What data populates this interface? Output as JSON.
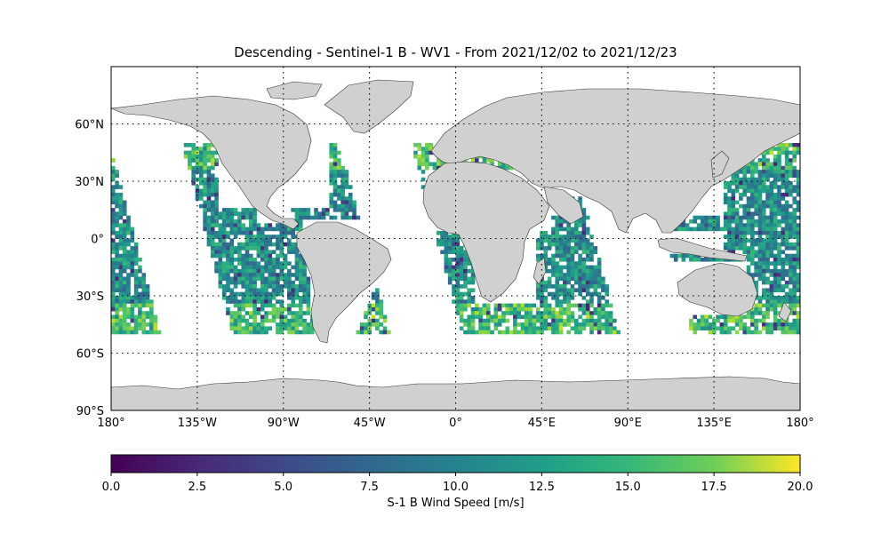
{
  "title": "Descending - Sentinel-1 B - WV1 - From 2021/12/02 to 2021/12/23",
  "lon_ticks": [
    "180°",
    "135°W",
    "90°W",
    "45°W",
    "0°",
    "45°E",
    "90°E",
    "135°E",
    "180°"
  ],
  "lat_ticks": [
    "60°N",
    "30°N",
    "0°",
    "30°S",
    "60°S",
    "90°S"
  ],
  "colorbar": {
    "label": "S-1 B Wind Speed [m/s]",
    "ticks": [
      "0.0",
      "2.5",
      "5.0",
      "7.5",
      "10.0",
      "12.5",
      "15.0",
      "17.5",
      "20.0"
    ],
    "range": [
      0,
      20
    ],
    "colormap": "viridis"
  },
  "colors": {
    "land": "#d0d0d0",
    "coast": "#333333",
    "grid": "#000000"
  },
  "chart_data": {
    "type": "heatmap",
    "title": "Descending - Sentinel-1 B - WV1 - From 2021/12/02 to 2021/12/23",
    "projection": "plate-carree",
    "xlim": [
      -180,
      180
    ],
    "ylim": [
      -90,
      90
    ],
    "data_lat_range": [
      -50,
      50
    ],
    "grid": true,
    "colorbar_label": "S-1 B Wind Speed [m/s]",
    "vmin": 0,
    "vmax": 20,
    "typical_value": 10
  }
}
